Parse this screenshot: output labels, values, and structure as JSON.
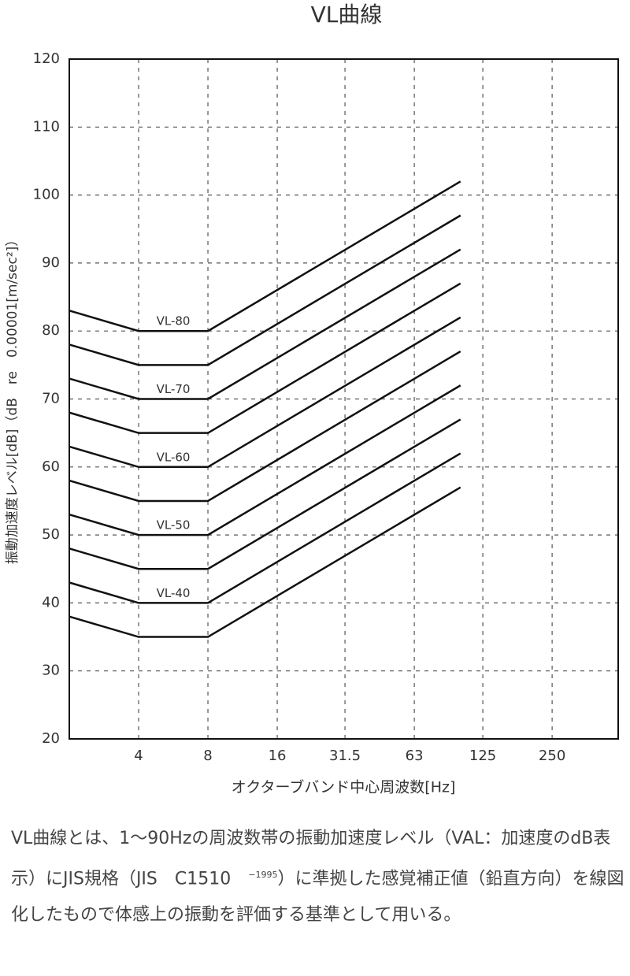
{
  "chart_data": {
    "type": "line",
    "title": "VL曲線",
    "x_label": "オクターブバンド中心周波数[Hz]",
    "y_label": "振動加速度レベル[dB]（dB　re　0.00001[m/sec²]）",
    "x": [
      2,
      4,
      8,
      100
    ],
    "xlim": [
      2,
      484
    ],
    "xticks": [
      4,
      8,
      16,
      31.5,
      63,
      125,
      250
    ],
    "xscale": "log",
    "ylim": [
      20,
      120
    ],
    "yticks": [
      20,
      30,
      40,
      50,
      60,
      70,
      80,
      90,
      100,
      110,
      120
    ],
    "grid": true,
    "color": "#111",
    "series": [
      {
        "name": "VL-80",
        "values": [
          83,
          80,
          80,
          102
        ]
      },
      {
        "values": [
          78,
          75,
          75,
          97
        ]
      },
      {
        "name": "VL-70",
        "values": [
          73,
          70,
          70,
          92
        ]
      },
      {
        "values": [
          68,
          65,
          65,
          87
        ]
      },
      {
        "name": "VL-60",
        "values": [
          63,
          60,
          60,
          82
        ]
      },
      {
        "values": [
          58,
          55,
          55,
          77
        ]
      },
      {
        "name": "VL-50",
        "values": [
          53,
          50,
          50,
          72
        ]
      },
      {
        "values": [
          48,
          45,
          45,
          67
        ]
      },
      {
        "name": "VL-40",
        "values": [
          43,
          40,
          40,
          62
        ]
      },
      {
        "values": [
          38,
          35,
          35,
          57
        ]
      }
    ]
  },
  "description": {
    "before": "VL曲線とは、1〜90Hzの周波数帯の振動加速度レベル（VAL：加速度のdB表示）にJIS規格（JIS　C1510　",
    "superscript": "−1995",
    "after": "）に準拠した感覚補正値（鉛直方向）を線図化したもので体感上の振動を評価する基準として用いる。"
  }
}
